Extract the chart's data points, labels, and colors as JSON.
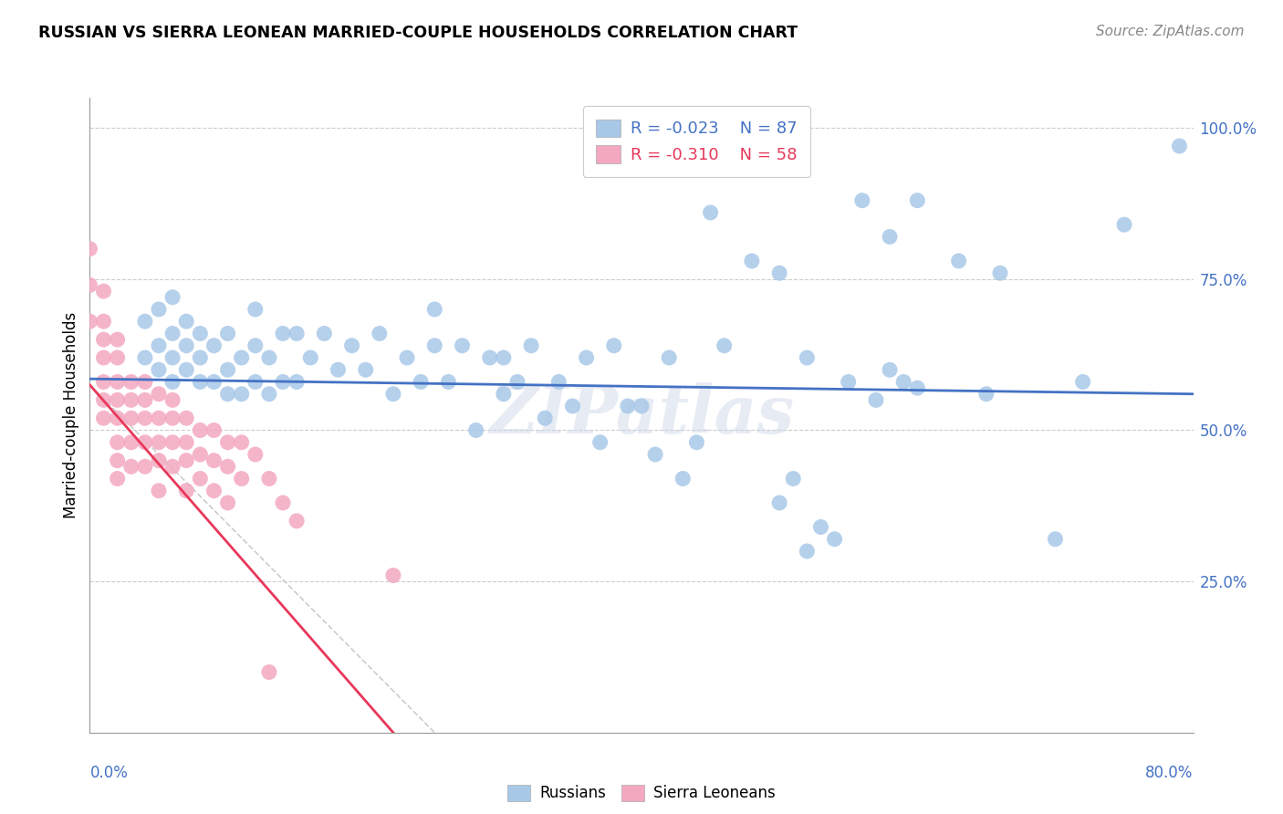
{
  "title": "RUSSIAN VS SIERRA LEONEAN MARRIED-COUPLE HOUSEHOLDS CORRELATION CHART",
  "source": "Source: ZipAtlas.com",
  "ylabel": "Married-couple Households",
  "xmin": 0.0,
  "xmax": 0.8,
  "ymin": 0.0,
  "ymax": 1.05,
  "russian_R": "-0.023",
  "russian_N": "87",
  "sierraleonean_R": "-0.310",
  "sierraleonean_N": "58",
  "russian_color": "#a8c8e8",
  "russian_line_color": "#4472c4",
  "sierraleonean_color": "#f4a8c0",
  "sierraleonean_line_color": "#e8385a",
  "diagonal_color": "#cccccc",
  "watermark": "ZIPatlas",
  "russian_scatter_x": [
    0.04,
    0.04,
    0.05,
    0.05,
    0.05,
    0.06,
    0.06,
    0.06,
    0.06,
    0.07,
    0.07,
    0.07,
    0.08,
    0.08,
    0.08,
    0.09,
    0.09,
    0.1,
    0.1,
    0.1,
    0.11,
    0.11,
    0.12,
    0.12,
    0.12,
    0.13,
    0.13,
    0.14,
    0.14,
    0.15,
    0.15,
    0.16,
    0.17,
    0.18,
    0.19,
    0.2,
    0.21,
    0.22,
    0.23,
    0.24,
    0.25,
    0.25,
    0.26,
    0.27,
    0.28,
    0.29,
    0.3,
    0.3,
    0.31,
    0.32,
    0.33,
    0.34,
    0.35,
    0.36,
    0.37,
    0.38,
    0.39,
    0.4,
    0.41,
    0.42,
    0.43,
    0.44,
    0.45,
    0.46,
    0.48,
    0.5,
    0.52,
    0.55,
    0.58,
    0.6,
    0.63,
    0.65,
    0.66,
    0.7,
    0.72,
    0.75,
    0.56,
    0.57,
    0.58,
    0.59,
    0.6,
    0.5,
    0.51,
    0.52,
    0.53,
    0.54,
    0.79
  ],
  "russian_scatter_y": [
    0.62,
    0.68,
    0.6,
    0.64,
    0.7,
    0.58,
    0.62,
    0.66,
    0.72,
    0.6,
    0.64,
    0.68,
    0.58,
    0.62,
    0.66,
    0.58,
    0.64,
    0.56,
    0.6,
    0.66,
    0.56,
    0.62,
    0.58,
    0.64,
    0.7,
    0.56,
    0.62,
    0.58,
    0.66,
    0.58,
    0.66,
    0.62,
    0.66,
    0.6,
    0.64,
    0.6,
    0.66,
    0.56,
    0.62,
    0.58,
    0.64,
    0.7,
    0.58,
    0.64,
    0.5,
    0.62,
    0.56,
    0.62,
    0.58,
    0.64,
    0.52,
    0.58,
    0.54,
    0.62,
    0.48,
    0.64,
    0.54,
    0.54,
    0.46,
    0.62,
    0.42,
    0.48,
    0.86,
    0.64,
    0.78,
    0.76,
    0.62,
    0.58,
    0.82,
    0.88,
    0.78,
    0.56,
    0.76,
    0.32,
    0.58,
    0.84,
    0.88,
    0.55,
    0.6,
    0.58,
    0.57,
    0.38,
    0.42,
    0.3,
    0.34,
    0.32,
    0.97
  ],
  "sierraleonean_scatter_x": [
    0.0,
    0.0,
    0.0,
    0.01,
    0.01,
    0.01,
    0.01,
    0.01,
    0.01,
    0.01,
    0.02,
    0.02,
    0.02,
    0.02,
    0.02,
    0.02,
    0.02,
    0.02,
    0.03,
    0.03,
    0.03,
    0.03,
    0.03,
    0.04,
    0.04,
    0.04,
    0.04,
    0.04,
    0.05,
    0.05,
    0.05,
    0.05,
    0.05,
    0.06,
    0.06,
    0.06,
    0.06,
    0.07,
    0.07,
    0.07,
    0.07,
    0.08,
    0.08,
    0.08,
    0.09,
    0.09,
    0.09,
    0.1,
    0.1,
    0.1,
    0.11,
    0.11,
    0.12,
    0.13,
    0.14,
    0.15,
    0.22,
    0.13
  ],
  "sierraleonean_scatter_y": [
    0.8,
    0.74,
    0.68,
    0.73,
    0.68,
    0.65,
    0.62,
    0.58,
    0.55,
    0.52,
    0.65,
    0.62,
    0.58,
    0.55,
    0.52,
    0.48,
    0.45,
    0.42,
    0.58,
    0.55,
    0.52,
    0.48,
    0.44,
    0.58,
    0.55,
    0.52,
    0.48,
    0.44,
    0.56,
    0.52,
    0.48,
    0.45,
    0.4,
    0.55,
    0.52,
    0.48,
    0.44,
    0.52,
    0.48,
    0.45,
    0.4,
    0.5,
    0.46,
    0.42,
    0.5,
    0.45,
    0.4,
    0.48,
    0.44,
    0.38,
    0.48,
    0.42,
    0.46,
    0.42,
    0.38,
    0.35,
    0.26,
    0.1
  ],
  "rus_line_x0": 0.0,
  "rus_line_x1": 0.8,
  "rus_line_y0": 0.585,
  "rus_line_y1": 0.56,
  "sl_line_x0": 0.0,
  "sl_line_x1": 0.22,
  "sl_line_y0": 0.575,
  "sl_line_y1": 0.0
}
